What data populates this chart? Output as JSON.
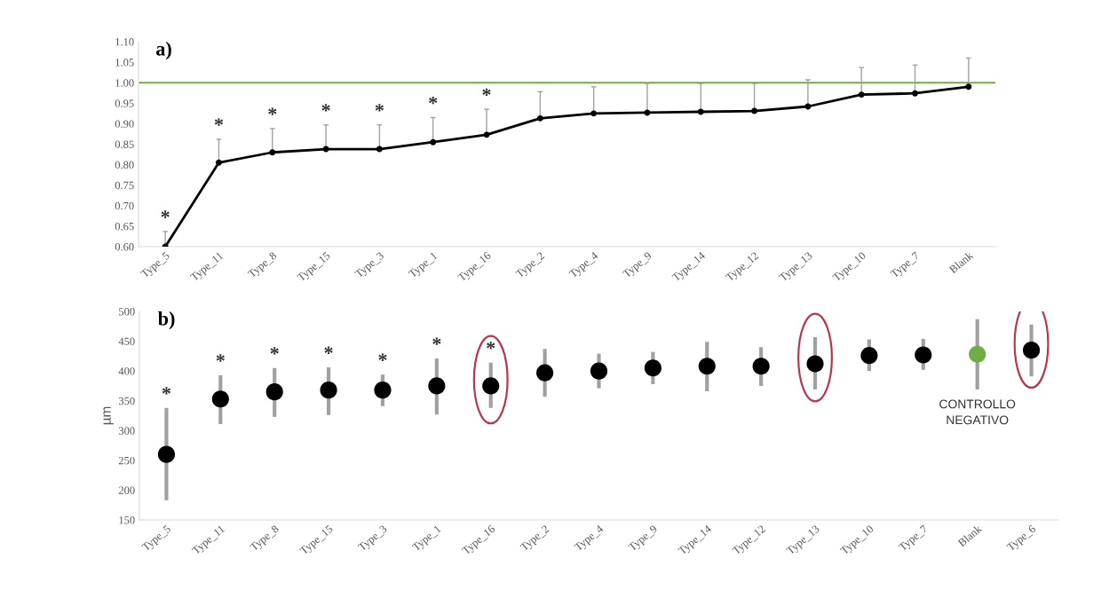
{
  "chart_data": [
    {
      "type": "line",
      "title": "a)",
      "categories": [
        "Type_5",
        "Type_11",
        "Type_8",
        "Type_15",
        "Type_3",
        "Type_1",
        "Type_16",
        "Type_2",
        "Type_4",
        "Type_9",
        "Type_14",
        "Type_12",
        "Type_13",
        "Type_10",
        "Type_7",
        "Blank"
      ],
      "series": [
        {
          "color": "#000000",
          "values": [
            0.6,
            0.805,
            0.83,
            0.838,
            0.838,
            0.855,
            0.873,
            0.913,
            0.925,
            0.927,
            0.929,
            0.931,
            0.942,
            0.971,
            0.974,
            0.99
          ],
          "errors": [
            [
              0.6,
              0.637
            ],
            [
              0.805,
              0.862
            ],
            [
              0.83,
              0.888
            ],
            [
              0.838,
              0.897
            ],
            [
              0.838,
              0.897
            ],
            [
              0.855,
              0.915
            ],
            [
              0.873,
              0.935
            ],
            [
              0.913,
              0.978
            ],
            [
              0.925,
              0.99
            ],
            [
              0.927,
              0.998
            ],
            [
              0.929,
              0.998
            ],
            [
              0.931,
              0.998
            ],
            [
              0.942,
              1.007
            ],
            [
              0.971,
              1.037
            ],
            [
              0.974,
              1.043
            ],
            [
              0.99,
              1.06
            ]
          ]
        }
      ],
      "ylim": [
        0.6,
        1.1
      ],
      "yticks": [
        {
          "value": 0.6,
          "label": "0.60"
        },
        {
          "value": 0.65,
          "label": "0.65"
        },
        {
          "value": 0.7,
          "label": "0.70"
        },
        {
          "value": 0.75,
          "label": "0.75"
        },
        {
          "value": 0.8,
          "label": "0.80"
        },
        {
          "value": 0.85,
          "label": "0.85"
        },
        {
          "value": 0.9,
          "label": "0.90"
        },
        {
          "value": 0.95,
          "label": "0.95"
        },
        {
          "value": 1.0,
          "label": "1.00"
        },
        {
          "value": 1.05,
          "label": "1.05"
        },
        {
          "value": 1.1,
          "label": "1.10"
        }
      ],
      "ref_lines": [
        {
          "axis": "y",
          "value": 1.0,
          "color": "#70ad47"
        }
      ],
      "marker": "circle",
      "grid": false,
      "legend": false,
      "annotations": [
        "*",
        "*",
        "*",
        "*",
        "*",
        "*",
        "*"
      ]
    },
    {
      "type": "scatter",
      "title": "b)",
      "ylabel": "µm",
      "categories": [
        "Type_5",
        "Type_11",
        "Type_8",
        "Type_15",
        "Type_3",
        "Type_1",
        "Type_16",
        "Type_2",
        "Type_4",
        "Type_9",
        "Type_14",
        "Type_12",
        "Type_13",
        "Type_10",
        "Type_7",
        "Blank",
        "Type_6"
      ],
      "series": [
        {
          "colors": [
            "#000000",
            "#000000",
            "#000000",
            "#000000",
            "#000000",
            "#000000",
            "#000000",
            "#000000",
            "#000000",
            "#000000",
            "#000000",
            "#000000",
            "#000000",
            "#000000",
            "#000000",
            "#70ad47",
            "#000000"
          ],
          "values": [
            260,
            353,
            365,
            368,
            368,
            375,
            375,
            397,
            400,
            405,
            408,
            408,
            412,
            426,
            427,
            428,
            435
          ],
          "errors": [
            [
              183,
              338
            ],
            [
              311,
              393
            ],
            [
              323,
              405
            ],
            [
              326,
              406
            ],
            [
              341,
              394
            ],
            [
              327,
              421
            ],
            [
              338,
              414
            ],
            [
              357,
              437
            ],
            [
              371,
              429
            ],
            [
              378,
              432
            ],
            [
              366,
              449
            ],
            [
              375,
              440
            ],
            [
              369,
              457
            ],
            [
              400,
              453
            ],
            [
              402,
              454
            ],
            [
              369,
              487
            ],
            [
              391,
              478
            ]
          ]
        }
      ],
      "ylim": [
        150,
        500
      ],
      "yticks": [
        150,
        200,
        250,
        300,
        350,
        400,
        450,
        500
      ],
      "marker": "circle",
      "grid": false,
      "legend": false,
      "annotations": [
        "*",
        "*",
        "*",
        "*",
        "*",
        "*",
        "*",
        "CONTROLLO\nNEGATIVO"
      ]
    }
  ]
}
